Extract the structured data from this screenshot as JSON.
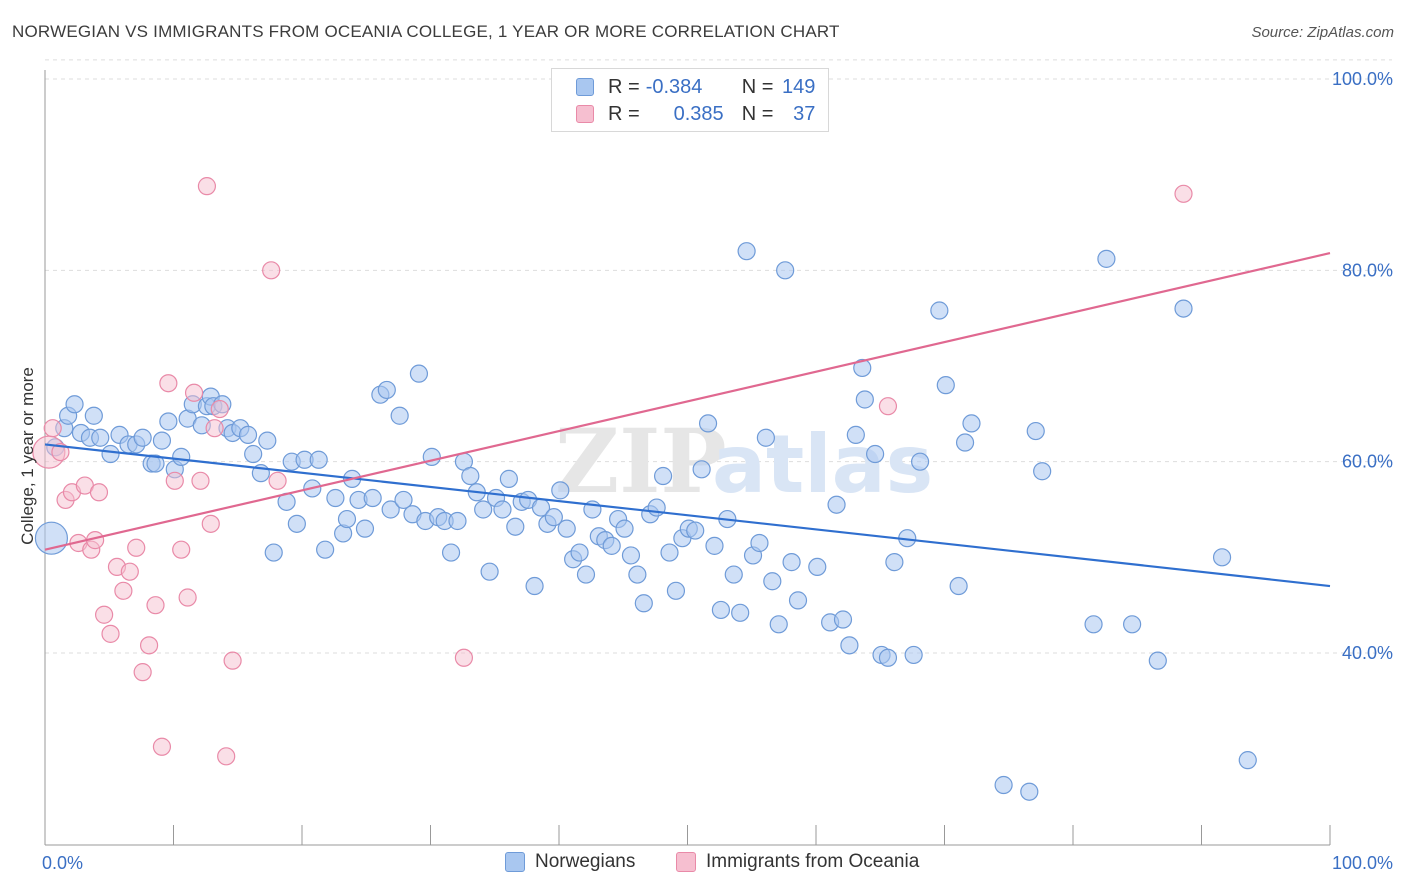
{
  "header": {
    "title": "NORWEGIAN VS IMMIGRANTS FROM OCEANIA COLLEGE, 1 YEAR OR MORE CORRELATION CHART",
    "source": "Source: ZipAtlas.com"
  },
  "watermark": {
    "zip": "ZIP",
    "atlas": "atlas"
  },
  "legend_top": {
    "rows": [
      {
        "r_label": "R = ",
        "r_value": "-0.384",
        "n_label": "N = ",
        "n_value": "149"
      },
      {
        "r_label": "R = ",
        "r_value": "0.385",
        "n_label": "N = ",
        "n_value": "37"
      }
    ]
  },
  "legend_bottom": {
    "items": [
      {
        "label": "Norwegians"
      },
      {
        "label": "Immigrants from Oceania"
      }
    ]
  },
  "colors": {
    "blue_fill": "#a9c7f0",
    "blue_stroke": "#6f9bd8",
    "blue_line": "#2f6fcf",
    "pink_fill": "#f6bfd0",
    "pink_stroke": "#e98aa8",
    "pink_line": "#e06890",
    "tick_label": "#3a6fc4",
    "grid": "#dddddd"
  },
  "chart_data": {
    "type": "scatter",
    "title": "NORWEGIAN VS IMMIGRANTS FROM OCEANIA COLLEGE, 1 YEAR OR MORE CORRELATION CHART",
    "xlabel": "",
    "ylabel": "College, 1 year or more",
    "xlim": [
      0,
      100
    ],
    "ylim": [
      20,
      102
    ],
    "x_tick_labels": [
      "0.0%",
      "100.0%"
    ],
    "y_ticks": [
      40,
      60,
      80,
      100
    ],
    "y_tick_labels": [
      "40.0%",
      "60.0%",
      "80.0%",
      "100.0%"
    ],
    "grid": true,
    "legend_position": "top-center",
    "series": [
      {
        "name": "Norwegians",
        "R": -0.384,
        "N": 149,
        "trend": {
          "x": [
            0,
            100
          ],
          "y": [
            61.8,
            47.0
          ]
        },
        "points": [
          [
            0.5,
            52
          ],
          [
            0.8,
            61.5
          ],
          [
            1.5,
            63.5
          ],
          [
            1.8,
            64.8
          ],
          [
            2.3,
            66
          ],
          [
            2.8,
            63
          ],
          [
            3.5,
            62.5
          ],
          [
            3.8,
            64.8
          ],
          [
            4.3,
            62.5
          ],
          [
            5.1,
            60.8
          ],
          [
            5.8,
            62.8
          ],
          [
            6.5,
            61.8
          ],
          [
            7.1,
            61.8
          ],
          [
            7.6,
            62.5
          ],
          [
            8.3,
            59.8
          ],
          [
            8.6,
            59.8
          ],
          [
            9.1,
            62.2
          ],
          [
            9.6,
            64.2
          ],
          [
            10.1,
            59.2
          ],
          [
            10.6,
            60.5
          ],
          [
            11.1,
            64.5
          ],
          [
            11.5,
            66
          ],
          [
            12.2,
            63.8
          ],
          [
            12.6,
            65.8
          ],
          [
            12.9,
            66.8
          ],
          [
            13.1,
            65.8
          ],
          [
            13.8,
            66
          ],
          [
            14.2,
            63.5
          ],
          [
            14.6,
            63
          ],
          [
            15.2,
            63.5
          ],
          [
            15.8,
            62.8
          ],
          [
            16.2,
            60.8
          ],
          [
            16.8,
            58.8
          ],
          [
            17.3,
            62.2
          ],
          [
            17.8,
            50.5
          ],
          [
            18.8,
            55.8
          ],
          [
            19.2,
            60
          ],
          [
            19.6,
            53.5
          ],
          [
            20.2,
            60.2
          ],
          [
            20.8,
            57.2
          ],
          [
            21.3,
            60.2
          ],
          [
            21.8,
            50.8
          ],
          [
            22.6,
            56.2
          ],
          [
            23.2,
            52.5
          ],
          [
            23.5,
            54
          ],
          [
            23.9,
            58.2
          ],
          [
            24.4,
            56
          ],
          [
            24.9,
            53
          ],
          [
            25.5,
            56.2
          ],
          [
            26.1,
            67
          ],
          [
            26.6,
            67.5
          ],
          [
            26.9,
            55
          ],
          [
            27.6,
            64.8
          ],
          [
            27.9,
            56
          ],
          [
            28.6,
            54.5
          ],
          [
            29.1,
            69.2
          ],
          [
            29.6,
            53.8
          ],
          [
            30.1,
            60.5
          ],
          [
            30.6,
            54.2
          ],
          [
            31.1,
            53.8
          ],
          [
            31.6,
            50.5
          ],
          [
            32.1,
            53.8
          ],
          [
            32.6,
            60
          ],
          [
            33.1,
            58.5
          ],
          [
            33.6,
            56.8
          ],
          [
            34.1,
            55
          ],
          [
            34.6,
            48.5
          ],
          [
            35.1,
            56.2
          ],
          [
            35.6,
            55
          ],
          [
            36.1,
            58.2
          ],
          [
            36.6,
            53.2
          ],
          [
            37.1,
            55.8
          ],
          [
            37.6,
            56
          ],
          [
            38.1,
            47
          ],
          [
            38.6,
            55.2
          ],
          [
            39.1,
            53.5
          ],
          [
            39.6,
            54.2
          ],
          [
            40.1,
            57
          ],
          [
            40.6,
            53
          ],
          [
            41.1,
            49.8
          ],
          [
            41.6,
            50.5
          ],
          [
            42.1,
            48.2
          ],
          [
            42.6,
            55
          ],
          [
            43.1,
            52.2
          ],
          [
            43.6,
            51.8
          ],
          [
            44.1,
            51.2
          ],
          [
            44.6,
            54
          ],
          [
            45.1,
            53
          ],
          [
            45.6,
            50.2
          ],
          [
            46.1,
            48.2
          ],
          [
            46.6,
            45.2
          ],
          [
            47.1,
            54.5
          ],
          [
            47.6,
            55.2
          ],
          [
            48.1,
            58.5
          ],
          [
            48.6,
            50.5
          ],
          [
            49.1,
            46.5
          ],
          [
            49.6,
            52
          ],
          [
            50.1,
            53
          ],
          [
            50.6,
            52.8
          ],
          [
            51.1,
            59.2
          ],
          [
            51.6,
            64
          ],
          [
            52.1,
            51.2
          ],
          [
            52.6,
            44.5
          ],
          [
            53.1,
            54
          ],
          [
            53.6,
            48.2
          ],
          [
            54.1,
            44.2
          ],
          [
            54.6,
            82
          ],
          [
            55.1,
            50.2
          ],
          [
            55.6,
            51.5
          ],
          [
            56.1,
            62.5
          ],
          [
            56.6,
            47.5
          ],
          [
            57.1,
            43
          ],
          [
            57.6,
            80
          ],
          [
            58.1,
            49.5
          ],
          [
            58.6,
            45.5
          ],
          [
            60.1,
            49
          ],
          [
            61.1,
            43.2
          ],
          [
            61.6,
            55.5
          ],
          [
            62.1,
            43.5
          ],
          [
            62.6,
            40.8
          ],
          [
            63.1,
            62.8
          ],
          [
            63.6,
            69.8
          ],
          [
            63.8,
            66.5
          ],
          [
            64.6,
            60.8
          ],
          [
            65.1,
            39.8
          ],
          [
            65.6,
            39.5
          ],
          [
            66.1,
            49.5
          ],
          [
            67.1,
            52
          ],
          [
            67.6,
            39.8
          ],
          [
            68.1,
            60
          ],
          [
            69.6,
            75.8
          ],
          [
            70.1,
            68
          ],
          [
            71.1,
            47
          ],
          [
            71.6,
            62
          ],
          [
            72.1,
            64
          ],
          [
            74.6,
            26.2
          ],
          [
            76.6,
            25.5
          ],
          [
            77.1,
            63.2
          ],
          [
            77.6,
            59
          ],
          [
            81.6,
            43
          ],
          [
            82.6,
            81.2
          ],
          [
            84.6,
            43
          ],
          [
            86.6,
            39.2
          ],
          [
            88.6,
            76
          ],
          [
            91.6,
            50
          ],
          [
            93.6,
            28.8
          ]
        ]
      },
      {
        "name": "Immigrants from Oceania",
        "R": 0.385,
        "N": 37,
        "trend": {
          "x": [
            0,
            100
          ],
          "y": [
            50.8,
            81.8
          ]
        },
        "points": [
          [
            0.3,
            61
          ],
          [
            0.6,
            63.5
          ],
          [
            1.2,
            61
          ],
          [
            1.6,
            56
          ],
          [
            2.1,
            56.8
          ],
          [
            2.6,
            51.5
          ],
          [
            3.1,
            57.5
          ],
          [
            3.6,
            50.8
          ],
          [
            3.9,
            51.8
          ],
          [
            4.2,
            56.8
          ],
          [
            4.6,
            44
          ],
          [
            5.1,
            42
          ],
          [
            5.6,
            49
          ],
          [
            6.1,
            46.5
          ],
          [
            6.6,
            48.5
          ],
          [
            7.1,
            51
          ],
          [
            7.6,
            38
          ],
          [
            8.1,
            40.8
          ],
          [
            8.6,
            45
          ],
          [
            9.1,
            30.2
          ],
          [
            9.6,
            68.2
          ],
          [
            10.1,
            58
          ],
          [
            10.6,
            50.8
          ],
          [
            11.1,
            45.8
          ],
          [
            11.6,
            67.2
          ],
          [
            12.1,
            58
          ],
          [
            12.6,
            88.8
          ],
          [
            12.9,
            53.5
          ],
          [
            13.2,
            63.5
          ],
          [
            13.6,
            65.5
          ],
          [
            14.1,
            29.2
          ],
          [
            14.6,
            39.2
          ],
          [
            17.6,
            80
          ],
          [
            18.1,
            58
          ],
          [
            32.6,
            39.5
          ],
          [
            65.6,
            65.8
          ],
          [
            88.6,
            88
          ]
        ]
      }
    ]
  }
}
